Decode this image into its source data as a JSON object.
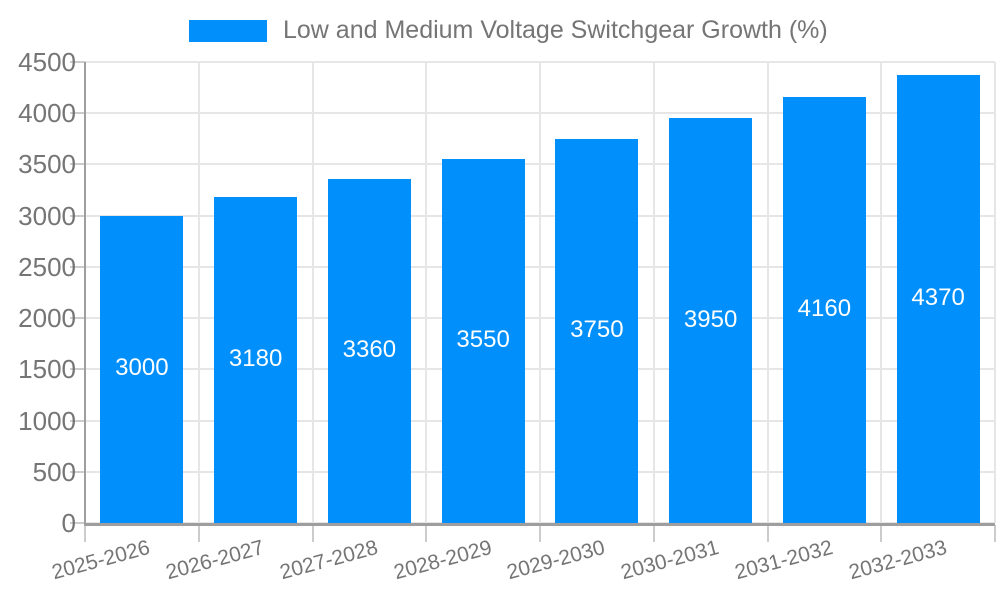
{
  "legend": {
    "label": "Low and Medium Voltage Switchgear Growth (%)"
  },
  "chart_data": {
    "type": "bar",
    "title": "Low and Medium Voltage Switchgear Growth (%)",
    "categories": [
      "2025-2026",
      "2026-2027",
      "2027-2028",
      "2028-2029",
      "2029-2030",
      "2030-2031",
      "2031-2032",
      "2032-2033"
    ],
    "series": [
      {
        "name": "Low and Medium Voltage Switchgear Growth (%)",
        "values": [
          3000,
          3180,
          3360,
          3550,
          3750,
          3950,
          4160,
          4370
        ]
      }
    ],
    "values": [
      3000,
      3180,
      3360,
      3550,
      3750,
      3950,
      4160,
      4370
    ],
    "value_labels_shown": true,
    "xlabel": "",
    "ylabel": "",
    "ylim": [
      0,
      4500
    ],
    "yticks": [
      0,
      500,
      1000,
      1500,
      2000,
      2500,
      3000,
      3500,
      4000,
      4500
    ],
    "grid": true,
    "legend_position": "top",
    "xlabel_rotation_deg": -15,
    "colors": {
      "bar": "#008FFB",
      "value_label": "#ffffff",
      "axis_text": "#757575",
      "grid": "#e6e6e6",
      "tick": "#cccccc",
      "axis_line": "#9e9e9e",
      "background": "#ffffff"
    }
  }
}
